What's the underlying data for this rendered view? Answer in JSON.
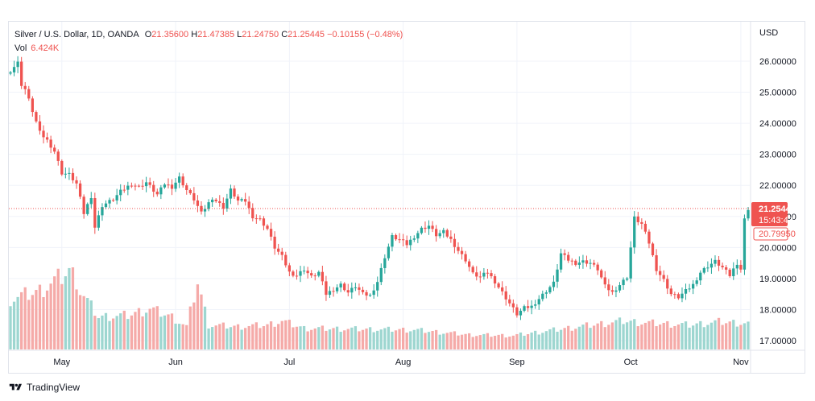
{
  "legend": {
    "symbol": "Silver / U.S. Dollar, 1D, OANDA",
    "open_label": "O",
    "open": "21.35600",
    "high_label": "H",
    "high": "21.47385",
    "low_label": "L",
    "low": "21.24750",
    "close_label": "C",
    "close": "21.25445",
    "change": "−0.10155 (−0.48%)",
    "vol_label": "Vol",
    "vol": "6.424K"
  },
  "axis": {
    "currency": "USD"
  },
  "price_tags": {
    "last": "21.25445",
    "countdown": "15:43:42",
    "other": "20.79950"
  },
  "colors": {
    "up": "#26a69a",
    "down": "#ef5350",
    "up_vol": "#9dd6d0",
    "down_vol": "#f5aaa8",
    "grid": "#f0f3fa",
    "text": "#131722"
  },
  "footer": {
    "brand": "TradingView"
  },
  "chart_data": {
    "type": "candlestick",
    "symbol": "Silver / U.S. Dollar",
    "interval": "1D",
    "exchange": "OANDA",
    "price_axis": {
      "ticks": [
        26,
        25,
        24,
        23,
        22,
        21,
        20,
        19,
        18,
        17
      ],
      "tick_labels": [
        "26.00000",
        "25.00000",
        "24.00000",
        "23.00000",
        "22.00000",
        "21.00000",
        "20.00000",
        "19.00000",
        "18.00000",
        "17.00000"
      ],
      "range": [
        16.7,
        26.4
      ]
    },
    "time_axis": {
      "labels": [
        "May",
        "Jun",
        "Jul",
        "Aug",
        "Sep",
        "Oct",
        "Nov"
      ],
      "label_index": [
        14,
        45,
        76,
        107,
        138,
        169,
        199
      ]
    },
    "last_price_line": 21.25445,
    "close_anchors": [
      [
        0,
        25.7
      ],
      [
        2,
        25.95
      ],
      [
        3,
        25.25
      ],
      [
        4,
        25.1
      ],
      [
        6,
        24.4
      ],
      [
        8,
        23.7
      ],
      [
        10,
        23.45
      ],
      [
        12,
        23.1
      ],
      [
        14,
        22.4
      ],
      [
        16,
        22.35
      ],
      [
        18,
        22.05
      ],
      [
        20,
        21.1
      ],
      [
        22,
        21.65
      ],
      [
        23,
        20.65
      ],
      [
        25,
        21.35
      ],
      [
        28,
        21.55
      ],
      [
        30,
        21.8
      ],
      [
        33,
        22.05
      ],
      [
        35,
        21.95
      ],
      [
        37,
        22.1
      ],
      [
        40,
        21.7
      ],
      [
        42,
        22.05
      ],
      [
        44,
        21.95
      ],
      [
        46,
        22.25
      ],
      [
        48,
        21.85
      ],
      [
        50,
        21.55
      ],
      [
        52,
        21.1
      ],
      [
        55,
        21.6
      ],
      [
        58,
        21.3
      ],
      [
        60,
        21.85
      ],
      [
        62,
        21.5
      ],
      [
        64,
        21.5
      ],
      [
        66,
        21.0
      ],
      [
        68,
        20.9
      ],
      [
        70,
        20.6
      ],
      [
        72,
        20.0
      ],
      [
        74,
        19.7
      ],
      [
        76,
        19.2
      ],
      [
        78,
        19.1
      ],
      [
        80,
        19.3
      ],
      [
        82,
        19.05
      ],
      [
        84,
        19.2
      ],
      [
        86,
        18.5
      ],
      [
        88,
        18.65
      ],
      [
        90,
        18.8
      ],
      [
        92,
        18.55
      ],
      [
        94,
        18.75
      ],
      [
        96,
        18.5
      ],
      [
        98,
        18.45
      ],
      [
        100,
        18.9
      ],
      [
        102,
        19.7
      ],
      [
        104,
        20.35
      ],
      [
        106,
        20.25
      ],
      [
        108,
        20.1
      ],
      [
        110,
        20.35
      ],
      [
        112,
        20.6
      ],
      [
        114,
        20.7
      ],
      [
        116,
        20.4
      ],
      [
        118,
        20.5
      ],
      [
        120,
        20.25
      ],
      [
        122,
        19.9
      ],
      [
        124,
        19.6
      ],
      [
        126,
        19.15
      ],
      [
        128,
        19.05
      ],
      [
        130,
        19.2
      ],
      [
        132,
        18.9
      ],
      [
        134,
        18.55
      ],
      [
        136,
        18.2
      ],
      [
        138,
        17.85
      ],
      [
        140,
        18.05
      ],
      [
        142,
        18.1
      ],
      [
        144,
        18.35
      ],
      [
        146,
        18.6
      ],
      [
        148,
        18.85
      ],
      [
        150,
        19.8
      ],
      [
        152,
        19.6
      ],
      [
        154,
        19.5
      ],
      [
        156,
        19.55
      ],
      [
        158,
        19.5
      ],
      [
        160,
        19.3
      ],
      [
        162,
        18.75
      ],
      [
        164,
        18.55
      ],
      [
        166,
        18.8
      ],
      [
        168,
        19.05
      ],
      [
        170,
        20.95
      ],
      [
        172,
        20.75
      ],
      [
        174,
        20.15
      ],
      [
        176,
        19.3
      ],
      [
        178,
        18.95
      ],
      [
        180,
        18.5
      ],
      [
        182,
        18.4
      ],
      [
        184,
        18.6
      ],
      [
        186,
        18.8
      ],
      [
        188,
        19.2
      ],
      [
        190,
        19.4
      ],
      [
        192,
        19.55
      ],
      [
        194,
        19.35
      ],
      [
        196,
        19.1
      ],
      [
        198,
        19.5
      ],
      [
        199,
        19.3
      ],
      [
        200,
        20.9
      ],
      [
        201,
        21.25445
      ]
    ],
    "volume": {
      "relative_profile": [
        [
          0,
          0.62
        ],
        [
          8,
          0.72
        ],
        [
          14,
          0.9
        ],
        [
          17,
          1.0
        ],
        [
          19,
          0.72
        ],
        [
          24,
          0.4
        ],
        [
          32,
          0.42
        ],
        [
          38,
          0.5
        ],
        [
          44,
          0.4
        ],
        [
          48,
          0.28
        ],
        [
          51,
          0.83
        ],
        [
          54,
          0.3
        ],
        [
          62,
          0.28
        ],
        [
          70,
          0.3
        ],
        [
          74,
          0.35
        ],
        [
          80,
          0.26
        ],
        [
          95,
          0.25
        ],
        [
          110,
          0.24
        ],
        [
          125,
          0.18
        ],
        [
          137,
          0.17
        ],
        [
          145,
          0.22
        ],
        [
          155,
          0.28
        ],
        [
          167,
          0.35
        ],
        [
          172,
          0.33
        ],
        [
          185,
          0.3
        ],
        [
          193,
          0.34
        ],
        [
          201,
          0.32
        ]
      ]
    }
  }
}
